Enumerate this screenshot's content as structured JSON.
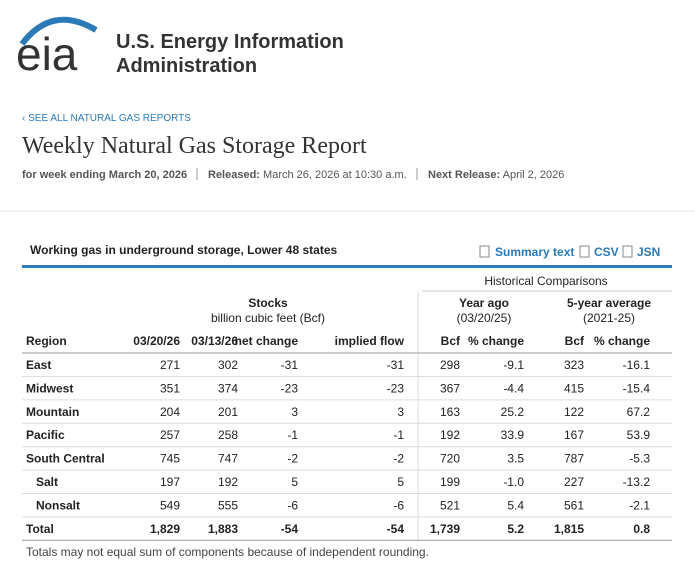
{
  "header": {
    "logo": "eia",
    "org_name": [
      "U.S. Energy Information",
      "Administration"
    ]
  },
  "back_link": "‹ SEE ALL NATURAL GAS REPORTS",
  "title": "Weekly Natural Gas Storage Report",
  "meta": {
    "week": "for week ending March 20, 2026",
    "released_label": "Released:",
    "released": "March 26, 2026 at 10:30 a.m.",
    "next_label": "Next Release:",
    "next": "April 2, 2026"
  },
  "table": {
    "title": "Working gas in underground storage, Lower 48 states",
    "links": [
      "Summary text",
      "CSV",
      "JSN"
    ],
    "historical": "Historical Comparisons",
    "stocks": {
      "title": "Stocks",
      "subtitle": "billion cubic feet (Bcf)"
    },
    "year_ago": {
      "title": "Year ago",
      "subtitle": "(03/20/25)"
    },
    "five_year": {
      "title": "5-year average",
      "subtitle": "(2021-25)"
    },
    "columns": [
      "Region",
      "03/20/26",
      "03/13/26",
      "net change",
      "implied flow",
      "Bcf",
      "% change",
      "Bcf",
      "% change"
    ],
    "rows": [
      [
        "East",
        "271",
        "302",
        "-31",
        "-31",
        "298",
        "-9.1",
        "323",
        "-16.1"
      ],
      [
        "Midwest",
        "351",
        "374",
        "-23",
        "-23",
        "367",
        "-4.4",
        "415",
        "-15.4"
      ],
      [
        "Mountain",
        "204",
        "201",
        "3",
        "3",
        "163",
        "25.2",
        "122",
        "67.2"
      ],
      [
        "Pacific",
        "257",
        "258",
        "-1",
        "-1",
        "192",
        "33.9",
        "167",
        "53.9"
      ],
      [
        "South Central",
        "745",
        "747",
        "-2",
        "-2",
        "720",
        "3.5",
        "787",
        "-5.3"
      ],
      [
        "Salt",
        "197",
        "192",
        "5",
        "5",
        "199",
        "-1.0",
        "227",
        "-13.2"
      ],
      [
        "Nonsalt",
        "549",
        "555",
        "-6",
        "-6",
        "521",
        "5.4",
        "561",
        "-2.1"
      ],
      [
        "Total",
        "1,829",
        "1,883",
        "-54",
        "-54",
        "1,739",
        "5.2",
        "1,815",
        "0.8"
      ]
    ],
    "footnote": "Totals may not equal sum of components because of independent rounding."
  }
}
